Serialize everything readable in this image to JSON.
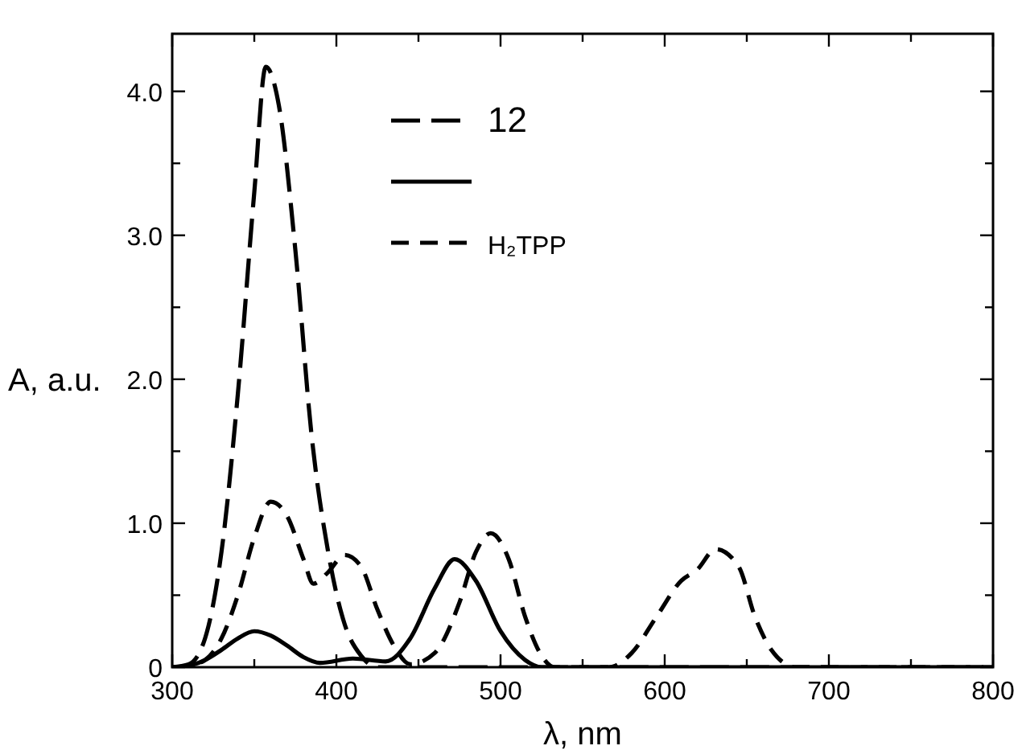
{
  "chart_data": {
    "type": "line",
    "xlabel": "λ, nm",
    "ylabel": "A, a.u.",
    "xlim": [
      300,
      800
    ],
    "ylim": [
      0,
      4.4
    ],
    "xticks": [
      300,
      {
        "value": 350,
        "label": null
      },
      400,
      {
        "value": 450,
        "label": null
      },
      500,
      {
        "value": 550,
        "label": null
      },
      600,
      {
        "value": 650,
        "label": null
      },
      700,
      {
        "value": 750,
        "label": null
      },
      800
    ],
    "yticks": [
      0,
      {
        "value": 0.5,
        "label": null
      },
      {
        "value": 1,
        "label": "1.0"
      },
      {
        "value": 1.5,
        "label": null
      },
      {
        "value": 2,
        "label": "2.0"
      },
      {
        "value": 2.5,
        "label": null
      },
      {
        "value": 3,
        "label": "3.0"
      },
      {
        "value": 3.5,
        "label": null
      },
      {
        "value": 4,
        "label": "4.0"
      }
    ],
    "legend": "top",
    "grid": false,
    "series": [
      {
        "name": "12",
        "color": "#000000",
        "line_style": "dashed",
        "x": [
          300,
          310,
          320,
          330,
          340,
          350,
          357,
          365,
          375,
          385,
          395,
          405,
          415,
          425,
          800
        ],
        "values": [
          0,
          0.02,
          0.2,
          0.8,
          1.9,
          3.3,
          4.17,
          3.9,
          2.9,
          1.6,
          0.8,
          0.3,
          0.08,
          0,
          0
        ]
      },
      {
        "color": "#000000",
        "line_style": "solid",
        "x": [
          300,
          310,
          320,
          330,
          340,
          350,
          360,
          370,
          380,
          390,
          410,
          430,
          445,
          460,
          472,
          485,
          500,
          515,
          525,
          800
        ],
        "values": [
          0,
          0.01,
          0.05,
          0.12,
          0.2,
          0.25,
          0.22,
          0.15,
          0.07,
          0.03,
          0.06,
          0.04,
          0.2,
          0.55,
          0.75,
          0.6,
          0.25,
          0.05,
          0,
          0
        ]
      },
      {
        "name": "H₂TPP",
        "color": "#000000",
        "line_style": "dashed",
        "x": [
          300,
          310,
          320,
          330,
          340,
          350,
          360,
          370,
          380,
          386,
          395,
          405,
          415,
          425,
          435,
          445,
          460,
          475,
          485,
          494,
          505,
          515,
          525,
          533,
          566,
          580,
          595,
          610,
          620,
          631,
          645,
          655,
          665,
          680,
          800
        ],
        "values": [
          0,
          0.01,
          0.05,
          0.2,
          0.5,
          0.9,
          1.15,
          1.05,
          0.75,
          0.58,
          0.66,
          0.78,
          0.7,
          0.4,
          0.15,
          0.02,
          0.1,
          0.45,
          0.8,
          0.93,
          0.75,
          0.35,
          0.08,
          0,
          0,
          0.1,
          0.35,
          0.6,
          0.68,
          0.82,
          0.7,
          0.35,
          0.12,
          0,
          0
        ]
      }
    ]
  }
}
